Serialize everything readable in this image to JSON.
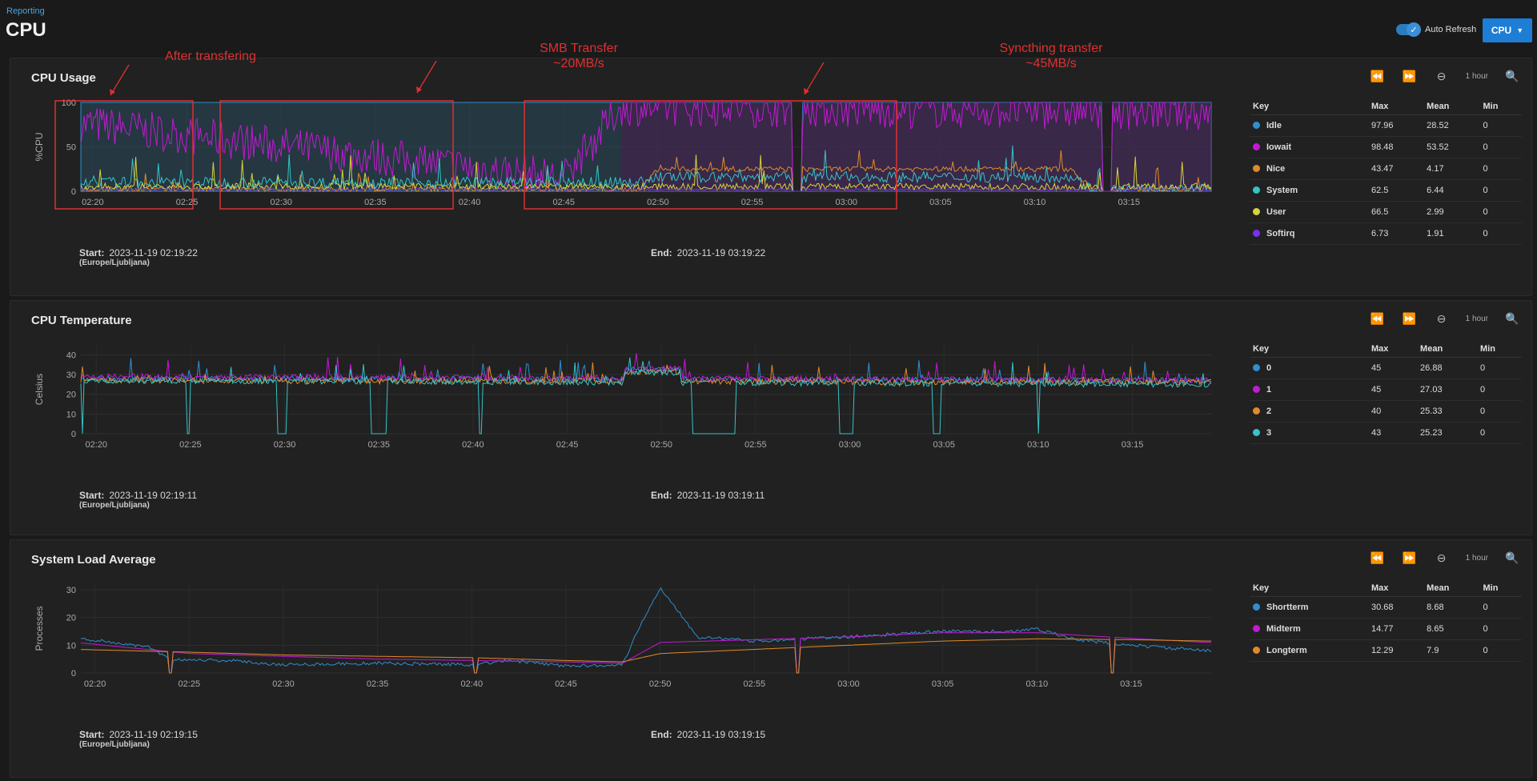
{
  "breadcrumb": "Reporting",
  "page_title": "CPU",
  "auto_refresh": {
    "label": "Auto Refresh",
    "enabled": true
  },
  "report_select": {
    "label": "CPU"
  },
  "colors": {
    "blue": "#2f8fd0",
    "magenta": "#c21ad4",
    "orange": "#e08a2a",
    "cyan": "#35c4c8",
    "yellow": "#d8d33a",
    "purple": "#7b2ff0",
    "annotation": "#e03030"
  },
  "panels": [
    {
      "title": "CPU Usage",
      "range_label": "1 hour",
      "start_label": "Start:",
      "start": "2023-11-19 02:19:22",
      "tz": "(Europe/Ljubljana)",
      "end_label": "End:",
      "end": "2023-11-19 03:19:22",
      "legend": {
        "headers": [
          "Key",
          "Max",
          "Mean",
          "Min"
        ],
        "rows": [
          {
            "name": "Idle",
            "max": "97.96",
            "mean": "28.52",
            "min": "0",
            "color": "#2f8fd0"
          },
          {
            "name": "Iowait",
            "max": "98.48",
            "mean": "53.52",
            "min": "0",
            "color": "#c21ad4"
          },
          {
            "name": "Nice",
            "max": "43.47",
            "mean": "4.17",
            "min": "0",
            "color": "#e08a2a"
          },
          {
            "name": "System",
            "max": "62.5",
            "mean": "6.44",
            "min": "0",
            "color": "#35c4c8"
          },
          {
            "name": "User",
            "max": "66.5",
            "mean": "2.99",
            "min": "0",
            "color": "#d8d33a"
          },
          {
            "name": "Softirq",
            "max": "6.73",
            "mean": "1.91",
            "min": "0",
            "color": "#7b2ff0"
          }
        ]
      },
      "annotations": [
        {
          "text": "After transfering"
        },
        {
          "text": "SMB Transfer\n~20MB/s"
        },
        {
          "text": "Syncthing transfer\n~45MB/s"
        }
      ]
    },
    {
      "title": "CPU Temperature",
      "range_label": "1 hour",
      "start_label": "Start:",
      "start": "2023-11-19 02:19:11",
      "tz": "(Europe/Ljubljana)",
      "end_label": "End:",
      "end": "2023-11-19 03:19:11",
      "legend": {
        "headers": [
          "Key",
          "Max",
          "Mean",
          "Min"
        ],
        "rows": [
          {
            "name": "0",
            "max": "45",
            "mean": "26.88",
            "min": "0",
            "color": "#2f8fd0"
          },
          {
            "name": "1",
            "max": "45",
            "mean": "27.03",
            "min": "0",
            "color": "#c21ad4"
          },
          {
            "name": "2",
            "max": "40",
            "mean": "25.33",
            "min": "0",
            "color": "#e08a2a"
          },
          {
            "name": "3",
            "max": "43",
            "mean": "25.23",
            "min": "0",
            "color": "#35c4c8"
          }
        ]
      }
    },
    {
      "title": "System Load Average",
      "range_label": "1 hour",
      "start_label": "Start:",
      "start": "2023-11-19 02:19:15",
      "tz": "(Europe/Ljubljana)",
      "end_label": "End:",
      "end": "2023-11-19 03:19:15",
      "legend": {
        "headers": [
          "Key",
          "Max",
          "Mean",
          "Min"
        ],
        "rows": [
          {
            "name": "Shortterm",
            "max": "30.68",
            "mean": "8.68",
            "min": "0",
            "color": "#2f8fd0"
          },
          {
            "name": "Midterm",
            "max": "14.77",
            "mean": "8.65",
            "min": "0",
            "color": "#c21ad4"
          },
          {
            "name": "Longterm",
            "max": "12.29",
            "mean": "7.9",
            "min": "0",
            "color": "#e08a2a"
          }
        ]
      }
    }
  ],
  "chart_data": [
    {
      "type": "line",
      "ylabel": "%CPU",
      "ylim": [
        0,
        100
      ],
      "yticks": [
        "0",
        "50",
        "100"
      ],
      "xticks": [
        "02:20",
        "02:25",
        "02:30",
        "02:35",
        "02:40",
        "02:45",
        "02:50",
        "02:55",
        "03:00",
        "03:05",
        "03:10",
        "03:15"
      ],
      "x_range": [
        "02:19:22",
        "03:19:22"
      ],
      "series": [
        {
          "name": "Idle",
          "approx_level": [
            {
              "x": "02:19",
              "y": 100
            },
            {
              "x": "03:19",
              "y": 100
            }
          ]
        },
        {
          "name": "Iowait",
          "approx_level": [
            {
              "x": "02:20",
              "y": 75
            },
            {
              "x": "02:45",
              "y": 15
            },
            {
              "x": "02:48",
              "y": 95
            },
            {
              "x": "03:19",
              "y": 90
            }
          ]
        },
        {
          "name": "Nice",
          "approx_level": [
            {
              "x": "02:20",
              "y": 2
            },
            {
              "x": "02:49",
              "y": 2
            },
            {
              "x": "02:50",
              "y": 25
            },
            {
              "x": "03:12",
              "y": 25
            },
            {
              "x": "03:13",
              "y": 2
            }
          ]
        },
        {
          "name": "System",
          "approx_level": [
            {
              "x": "02:20",
              "y": 10
            },
            {
              "x": "02:49",
              "y": 10
            },
            {
              "x": "02:50",
              "y": 16
            },
            {
              "x": "03:12",
              "y": 16
            },
            {
              "x": "03:13",
              "y": 2
            }
          ]
        },
        {
          "name": "User",
          "approx_level": [
            {
              "x": "02:20",
              "y": 5
            },
            {
              "x": "03:19",
              "y": 5
            }
          ]
        },
        {
          "name": "Softirq",
          "approx_level": [
            {
              "x": "02:20",
              "y": 2
            },
            {
              "x": "03:19",
              "y": 2
            }
          ]
        }
      ]
    },
    {
      "type": "line",
      "ylabel": "Celsius",
      "ylim": [
        0,
        45
      ],
      "yticks": [
        "0",
        "10",
        "20",
        "30",
        "40"
      ],
      "xticks": [
        "02:20",
        "02:25",
        "02:30",
        "02:35",
        "02:40",
        "02:45",
        "02:50",
        "02:55",
        "03:00",
        "03:05",
        "03:10",
        "03:15"
      ],
      "x_range": [
        "02:19:11",
        "03:19:11"
      ],
      "series": [
        {
          "name": "0",
          "approx_level": [
            {
              "x": "02:20",
              "y": 28
            },
            {
              "x": "03:19",
              "y": 27
            }
          ]
        },
        {
          "name": "1",
          "approx_level": [
            {
              "x": "02:20",
              "y": 29
            },
            {
              "x": "03:19",
              "y": 27
            }
          ]
        },
        {
          "name": "2",
          "approx_level": [
            {
              "x": "02:20",
              "y": 27
            },
            {
              "x": "03:19",
              "y": 26
            }
          ]
        },
        {
          "name": "3",
          "approx_level": [
            {
              "x": "02:20",
              "y": 27
            },
            {
              "x": "03:19",
              "y": 25
            }
          ]
        }
      ]
    },
    {
      "type": "line",
      "ylabel": "Processes",
      "ylim": [
        0,
        32
      ],
      "yticks": [
        "0",
        "10",
        "20",
        "30"
      ],
      "xticks": [
        "02:20",
        "02:25",
        "02:30",
        "02:35",
        "02:40",
        "02:45",
        "02:50",
        "02:55",
        "03:00",
        "03:05",
        "03:10",
        "03:15"
      ],
      "x_range": [
        "02:19:15",
        "03:19:15"
      ],
      "series": [
        {
          "name": "Shortterm",
          "points": [
            [
              "02:19",
              12.5
            ],
            [
              "02:21",
              11
            ],
            [
              "02:23",
              9
            ],
            [
              "02:24",
              5
            ],
            [
              "02:27",
              4.5
            ],
            [
              "02:30",
              3
            ],
            [
              "02:35",
              3.5
            ],
            [
              "02:40",
              3
            ],
            [
              "02:42",
              4.5
            ],
            [
              "02:45",
              2.5
            ],
            [
              "02:48",
              3
            ],
            [
              "02:49",
              18
            ],
            [
              "02:50",
              30.7
            ],
            [
              "02:51",
              22
            ],
            [
              "02:52",
              13
            ],
            [
              "02:55",
              11.5
            ],
            [
              "03:00",
              13
            ],
            [
              "03:05",
              15
            ],
            [
              "03:09",
              15
            ],
            [
              "03:10",
              16
            ],
            [
              "03:12",
              12
            ],
            [
              "03:15",
              10
            ],
            [
              "03:19",
              8
            ]
          ]
        },
        {
          "name": "Midterm",
          "points": [
            [
              "02:19",
              11
            ],
            [
              "02:25",
              7
            ],
            [
              "02:30",
              6
            ],
            [
              "02:35",
              5
            ],
            [
              "02:40",
              4.5
            ],
            [
              "02:45",
              4
            ],
            [
              "02:48",
              3.5
            ],
            [
              "02:50",
              11
            ],
            [
              "02:55",
              12
            ],
            [
              "03:00",
              13
            ],
            [
              "03:05",
              14.5
            ],
            [
              "03:10",
              14.5
            ],
            [
              "03:15",
              12.5
            ],
            [
              "03:19",
              11
            ]
          ]
        },
        {
          "name": "Longterm",
          "points": [
            [
              "02:19",
              8.5
            ],
            [
              "02:25",
              7.5
            ],
            [
              "02:30",
              6.5
            ],
            [
              "02:35",
              6
            ],
            [
              "02:40",
              5.5
            ],
            [
              "02:45",
              4.5
            ],
            [
              "02:48",
              4
            ],
            [
              "02:50",
              7
            ],
            [
              "02:55",
              8.5
            ],
            [
              "03:00",
              10
            ],
            [
              "03:05",
              11.5
            ],
            [
              "03:10",
              12.3
            ],
            [
              "03:15",
              12
            ],
            [
              "03:19",
              11.5
            ]
          ]
        }
      ]
    }
  ]
}
